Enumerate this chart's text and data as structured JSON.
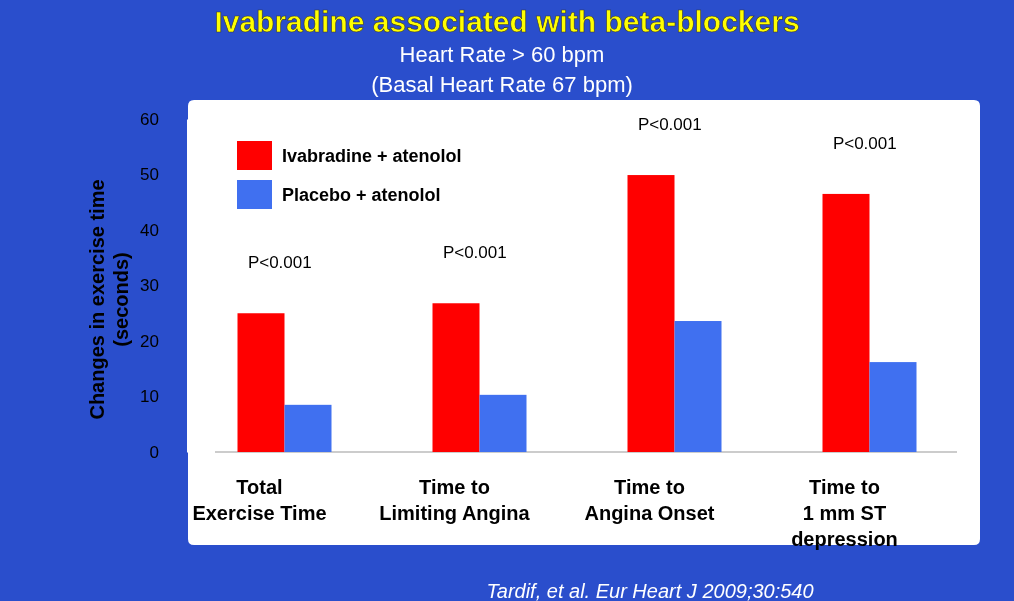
{
  "chart_data": {
    "type": "bar",
    "title": "Ivabradine associated with beta-blockers",
    "subtitle": "Heart Rate > 60 bpm\n(Basal Heart Rate 67 bpm)",
    "ylabel": "Changes in exercise time (seconds)",
    "categories": [
      "Total\nExercise Time",
      "Time to\nLimiting Angina",
      "Time to\nAngina Onset",
      "Time to\n1 mm ST\ndepression"
    ],
    "series": [
      {
        "name": "Ivabradine + atenolol",
        "color": "#ff0000",
        "values": [
          25,
          26.8,
          49.9,
          46.5
        ]
      },
      {
        "name": "Placebo + atenolol",
        "color": "#4070f0",
        "values": [
          8.5,
          10.3,
          23.6,
          16.2
        ]
      }
    ],
    "ylim": [
      0,
      60
    ],
    "yticks": [
      0,
      10,
      20,
      30,
      40,
      50,
      60
    ],
    "grid": false,
    "legend": "top left",
    "annotations": [
      "P<0.001",
      "P<0.001",
      "P<0.001",
      "P<0.001",
      "Tardif, et al. Eur Heart J 2009;30:540"
    ]
  }
}
